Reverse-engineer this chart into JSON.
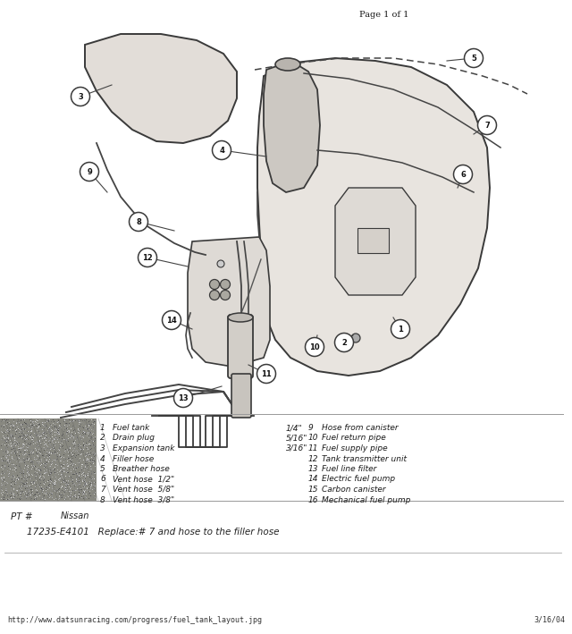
{
  "page_header": "Page 1 of 1",
  "footer_url": "http://www.datsunracing.com/progress/fuel_tank_layout.jpg",
  "footer_date": "3/16/04",
  "handwritten_line1": "PT #    Nissan",
  "handwritten_line2": "   17235-E4101   Replace:# 7 and hose to the filler hose",
  "legend_col1_items": [
    [
      "1",
      "Fuel tank"
    ],
    [
      "2",
      "Drain plug"
    ],
    [
      "3",
      "Expansion tank"
    ],
    [
      "4",
      "Filler hose"
    ],
    [
      "5",
      "Breather hose"
    ],
    [
      "6",
      "Vent hose  1/2\""
    ],
    [
      "7",
      "Vent hose  5/8\""
    ],
    [
      "8",
      "Vent hose  3/8\""
    ]
  ],
  "legend_col2_items": [
    [
      "1/4\"",
      "9",
      "Hose from canister"
    ],
    [
      "5/16\"",
      "10",
      "Fuel return pipe"
    ],
    [
      "3/16\"",
      "11",
      "Fuel supply pipe"
    ],
    [
      "",
      "12",
      "Tank transmitter unit"
    ],
    [
      "",
      "13",
      "Fuel line filter"
    ],
    [
      "",
      "14",
      "Electric fuel pump"
    ],
    [
      "",
      "15",
      "Carbon canister"
    ],
    [
      "",
      "16",
      "Mechanical fuel pump"
    ]
  ],
  "bg_color": "#ffffff",
  "text_color": "#1a1a1a",
  "dark_gray": "#555555",
  "mid_gray": "#888888",
  "tank_fill": "#e8e4df",
  "tank_edge": "#3a3a3a",
  "fig_width": 6.4,
  "fig_height": 7.09,
  "dpi": 100
}
